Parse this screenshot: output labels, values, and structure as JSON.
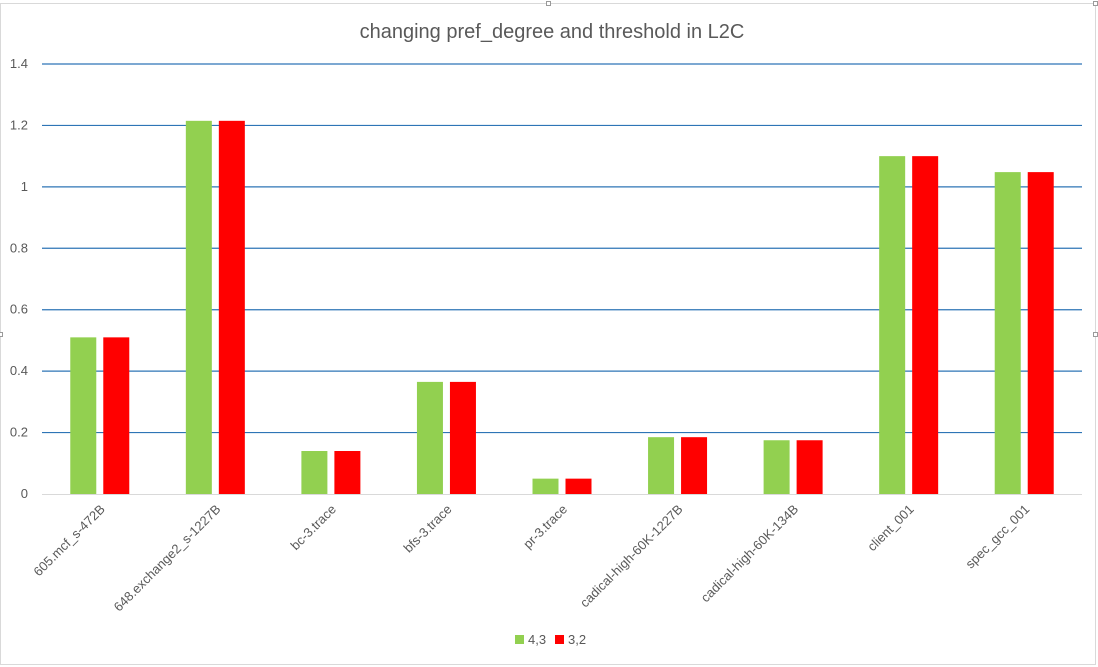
{
  "chart_data": {
    "type": "bar",
    "title": "changing pref_degree and threshold in L2C",
    "xlabel": "",
    "ylabel": "",
    "categories": [
      "605.mcf_s-472B",
      "648.exchange2_s-1227B",
      "bc-3.trace",
      "bfs-3.trace",
      "pr-3.trace",
      "cadical-high-60K-1227B",
      "cadical-high-60K-134B",
      "client_001",
      "spec_gcc_001"
    ],
    "series": [
      {
        "name": "4,3",
        "color": "#92d050",
        "values": [
          0.51,
          1.215,
          0.14,
          0.365,
          0.05,
          0.185,
          0.175,
          1.1,
          1.048
        ]
      },
      {
        "name": "3,2",
        "color": "#ff0000",
        "values": [
          0.51,
          1.215,
          0.14,
          0.365,
          0.05,
          0.185,
          0.175,
          1.1,
          1.048
        ]
      }
    ],
    "ylim": [
      0,
      1.4
    ],
    "yticks": [
      "0",
      "0.2",
      "0.4",
      "0.6",
      "0.8",
      "1",
      "1.2",
      "1.4"
    ],
    "grid": true,
    "gridline_color": "#2e75b6",
    "legend_position": "bottom"
  }
}
